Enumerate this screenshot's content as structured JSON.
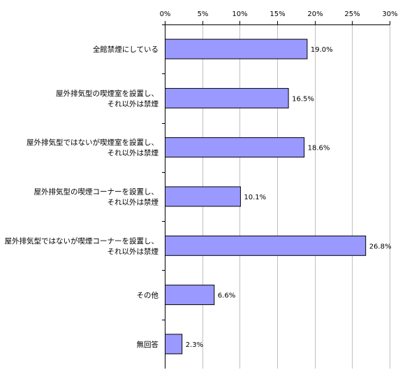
{
  "chart_data": {
    "type": "bar",
    "orientation": "horizontal",
    "categories": [
      [
        "全館禁煙にしている"
      ],
      [
        "屋外排気型の喫煙室を設置し、",
        "それ以外は禁煙"
      ],
      [
        "屋外排気型ではないが喫煙室を設置し、",
        "それ以外は禁煙"
      ],
      [
        "屋外排気型の喫煙コーナーを設置し、",
        "それ以外は禁煙"
      ],
      [
        "屋外排気型ではないが喫煙コーナーを設置し、",
        "それ以外は禁煙"
      ],
      [
        "その他"
      ],
      [
        "無回答"
      ]
    ],
    "values": [
      19.0,
      16.5,
      18.6,
      10.1,
      26.8,
      6.6,
      2.3
    ],
    "data_labels": [
      "19.0%",
      "16.5%",
      "18.6%",
      "10.1%",
      "26.8%",
      "6.6%",
      "2.3%"
    ],
    "x_ticks": [
      0,
      5,
      10,
      15,
      20,
      25,
      30
    ],
    "x_tick_labels": [
      "0%",
      "5%",
      "10%",
      "15%",
      "20%",
      "25%",
      "30%"
    ],
    "xlim": [
      0,
      30
    ],
    "x_axis_position": "top",
    "grid": "vertical",
    "bar_color": "#9999ff",
    "bar_edge_color": "#000000",
    "grid_color": "#c0c0c0"
  }
}
